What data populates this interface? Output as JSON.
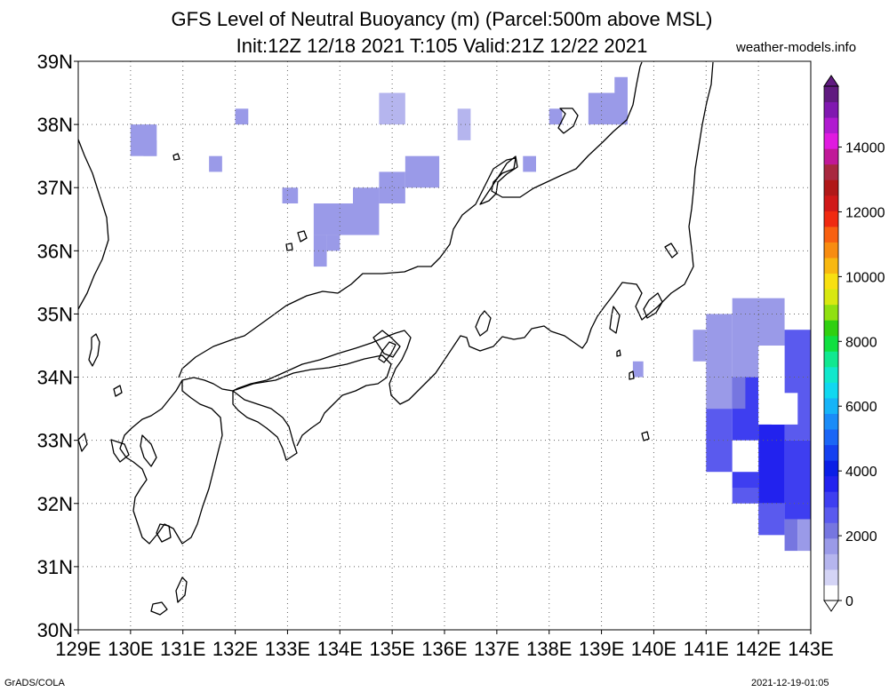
{
  "header": {
    "title_line1": "GFS Level of Neutral Buoyancy (m) (Parcel:500m above MSL)",
    "title_line2": "Init:12Z 12/18 2021 T:105 Valid:21Z 12/22 2021",
    "site": "weather-models.info"
  },
  "footer": {
    "credit": "GrADS/COLA",
    "timestamp": "2021-12-19-01:05"
  },
  "map": {
    "lon_labels": [
      "129E",
      "130E",
      "131E",
      "132E",
      "133E",
      "134E",
      "135E",
      "136E",
      "137E",
      "138E",
      "139E",
      "140E",
      "141E",
      "142E",
      "143E"
    ],
    "lat_labels": [
      "39N",
      "38N",
      "37N",
      "36N",
      "35N",
      "34N",
      "33N",
      "32N",
      "31N",
      "30N"
    ],
    "lon_range": [
      129,
      143
    ],
    "lat_range": [
      30,
      39
    ],
    "grid": "dotted",
    "coastline_color": "#000000"
  },
  "colorbar": {
    "labels": [
      "0",
      "2000",
      "4000",
      "6000",
      "8000",
      "10000",
      "12000",
      "14000"
    ],
    "colors": [
      "#ffffff",
      "#d4d4f5",
      "#b5b5ee",
      "#9a9ae8",
      "#7676e0",
      "#5a5aee",
      "#3e3ef0",
      "#2222ee",
      "#0a1ee6",
      "#1440f0",
      "#1a66f6",
      "#1a8cf8",
      "#16b4f8",
      "#10d8f0",
      "#10e8cc",
      "#10e890",
      "#10e040",
      "#30d010",
      "#90e010",
      "#d8e810",
      "#f8e010",
      "#f8b810",
      "#f88c10",
      "#f86010",
      "#f02a10",
      "#d01818",
      "#b01818",
      "#a82840",
      "#c01898",
      "#e01ae0",
      "#b01ad0",
      "#8018b0",
      "#601a80"
    ]
  },
  "field": {
    "units": "m",
    "cells": [
      [
        130.0,
        38.0,
        130.5,
        37.5,
        1500
      ],
      [
        130.25,
        37.75,
        130.5,
        37.5,
        1600
      ],
      [
        132.0,
        38.25,
        132.25,
        38.0,
        1500
      ],
      [
        131.5,
        37.5,
        131.75,
        37.25,
        1600
      ],
      [
        134.75,
        38.5,
        135.25,
        38.0,
        1200
      ],
      [
        136.25,
        38.25,
        136.5,
        37.75,
        1300
      ],
      [
        138.0,
        38.25,
        138.25,
        38.0,
        1600
      ],
      [
        138.75,
        38.5,
        139.5,
        38.0,
        1500
      ],
      [
        139.25,
        38.75,
        139.5,
        38.0,
        1500
      ],
      [
        137.5,
        37.5,
        137.75,
        37.25,
        1400
      ],
      [
        132.9,
        37.0,
        133.2,
        36.75,
        1500
      ],
      [
        133.5,
        36.75,
        134.25,
        36.25,
        1600
      ],
      [
        134.25,
        37.0,
        134.75,
        36.25,
        1600
      ],
      [
        134.75,
        37.25,
        135.25,
        36.75,
        1700
      ],
      [
        135.25,
        37.5,
        135.9,
        37.0,
        1800
      ],
      [
        133.5,
        36.25,
        133.75,
        35.75,
        1700
      ],
      [
        133.75,
        36.25,
        134.0,
        36.0,
        1700
      ],
      [
        139.6,
        34.25,
        139.8,
        34.0,
        1600
      ],
      [
        140.75,
        34.75,
        141.0,
        34.25,
        1600
      ],
      [
        141.0,
        35.0,
        141.5,
        33.5,
        1700
      ],
      [
        141.5,
        35.25,
        142.5,
        34.0,
        1800
      ],
      [
        142.5,
        34.75,
        143.0,
        33.0,
        2400
      ],
      [
        141.0,
        33.5,
        141.5,
        32.5,
        2600
      ],
      [
        141.5,
        34.0,
        142.0,
        32.25,
        2900
      ],
      [
        142.0,
        33.25,
        142.5,
        32.0,
        3300
      ],
      [
        142.5,
        33.0,
        143.0,
        31.75,
        3100
      ],
      [
        141.5,
        32.25,
        142.0,
        32.0,
        2500
      ],
      [
        142.0,
        32.0,
        142.5,
        31.5,
        2400
      ],
      [
        142.5,
        31.75,
        142.75,
        31.25,
        2000
      ],
      [
        142.75,
        31.75,
        143.0,
        31.25,
        1700
      ],
      [
        141.5,
        34.0,
        141.75,
        33.5,
        2000
      ],
      [
        142.0,
        34.5,
        142.5,
        33.75,
        0
      ],
      [
        142.25,
        33.75,
        142.75,
        33.25,
        0
      ],
      [
        141.5,
        33.0,
        142.0,
        32.5,
        0
      ]
    ]
  }
}
